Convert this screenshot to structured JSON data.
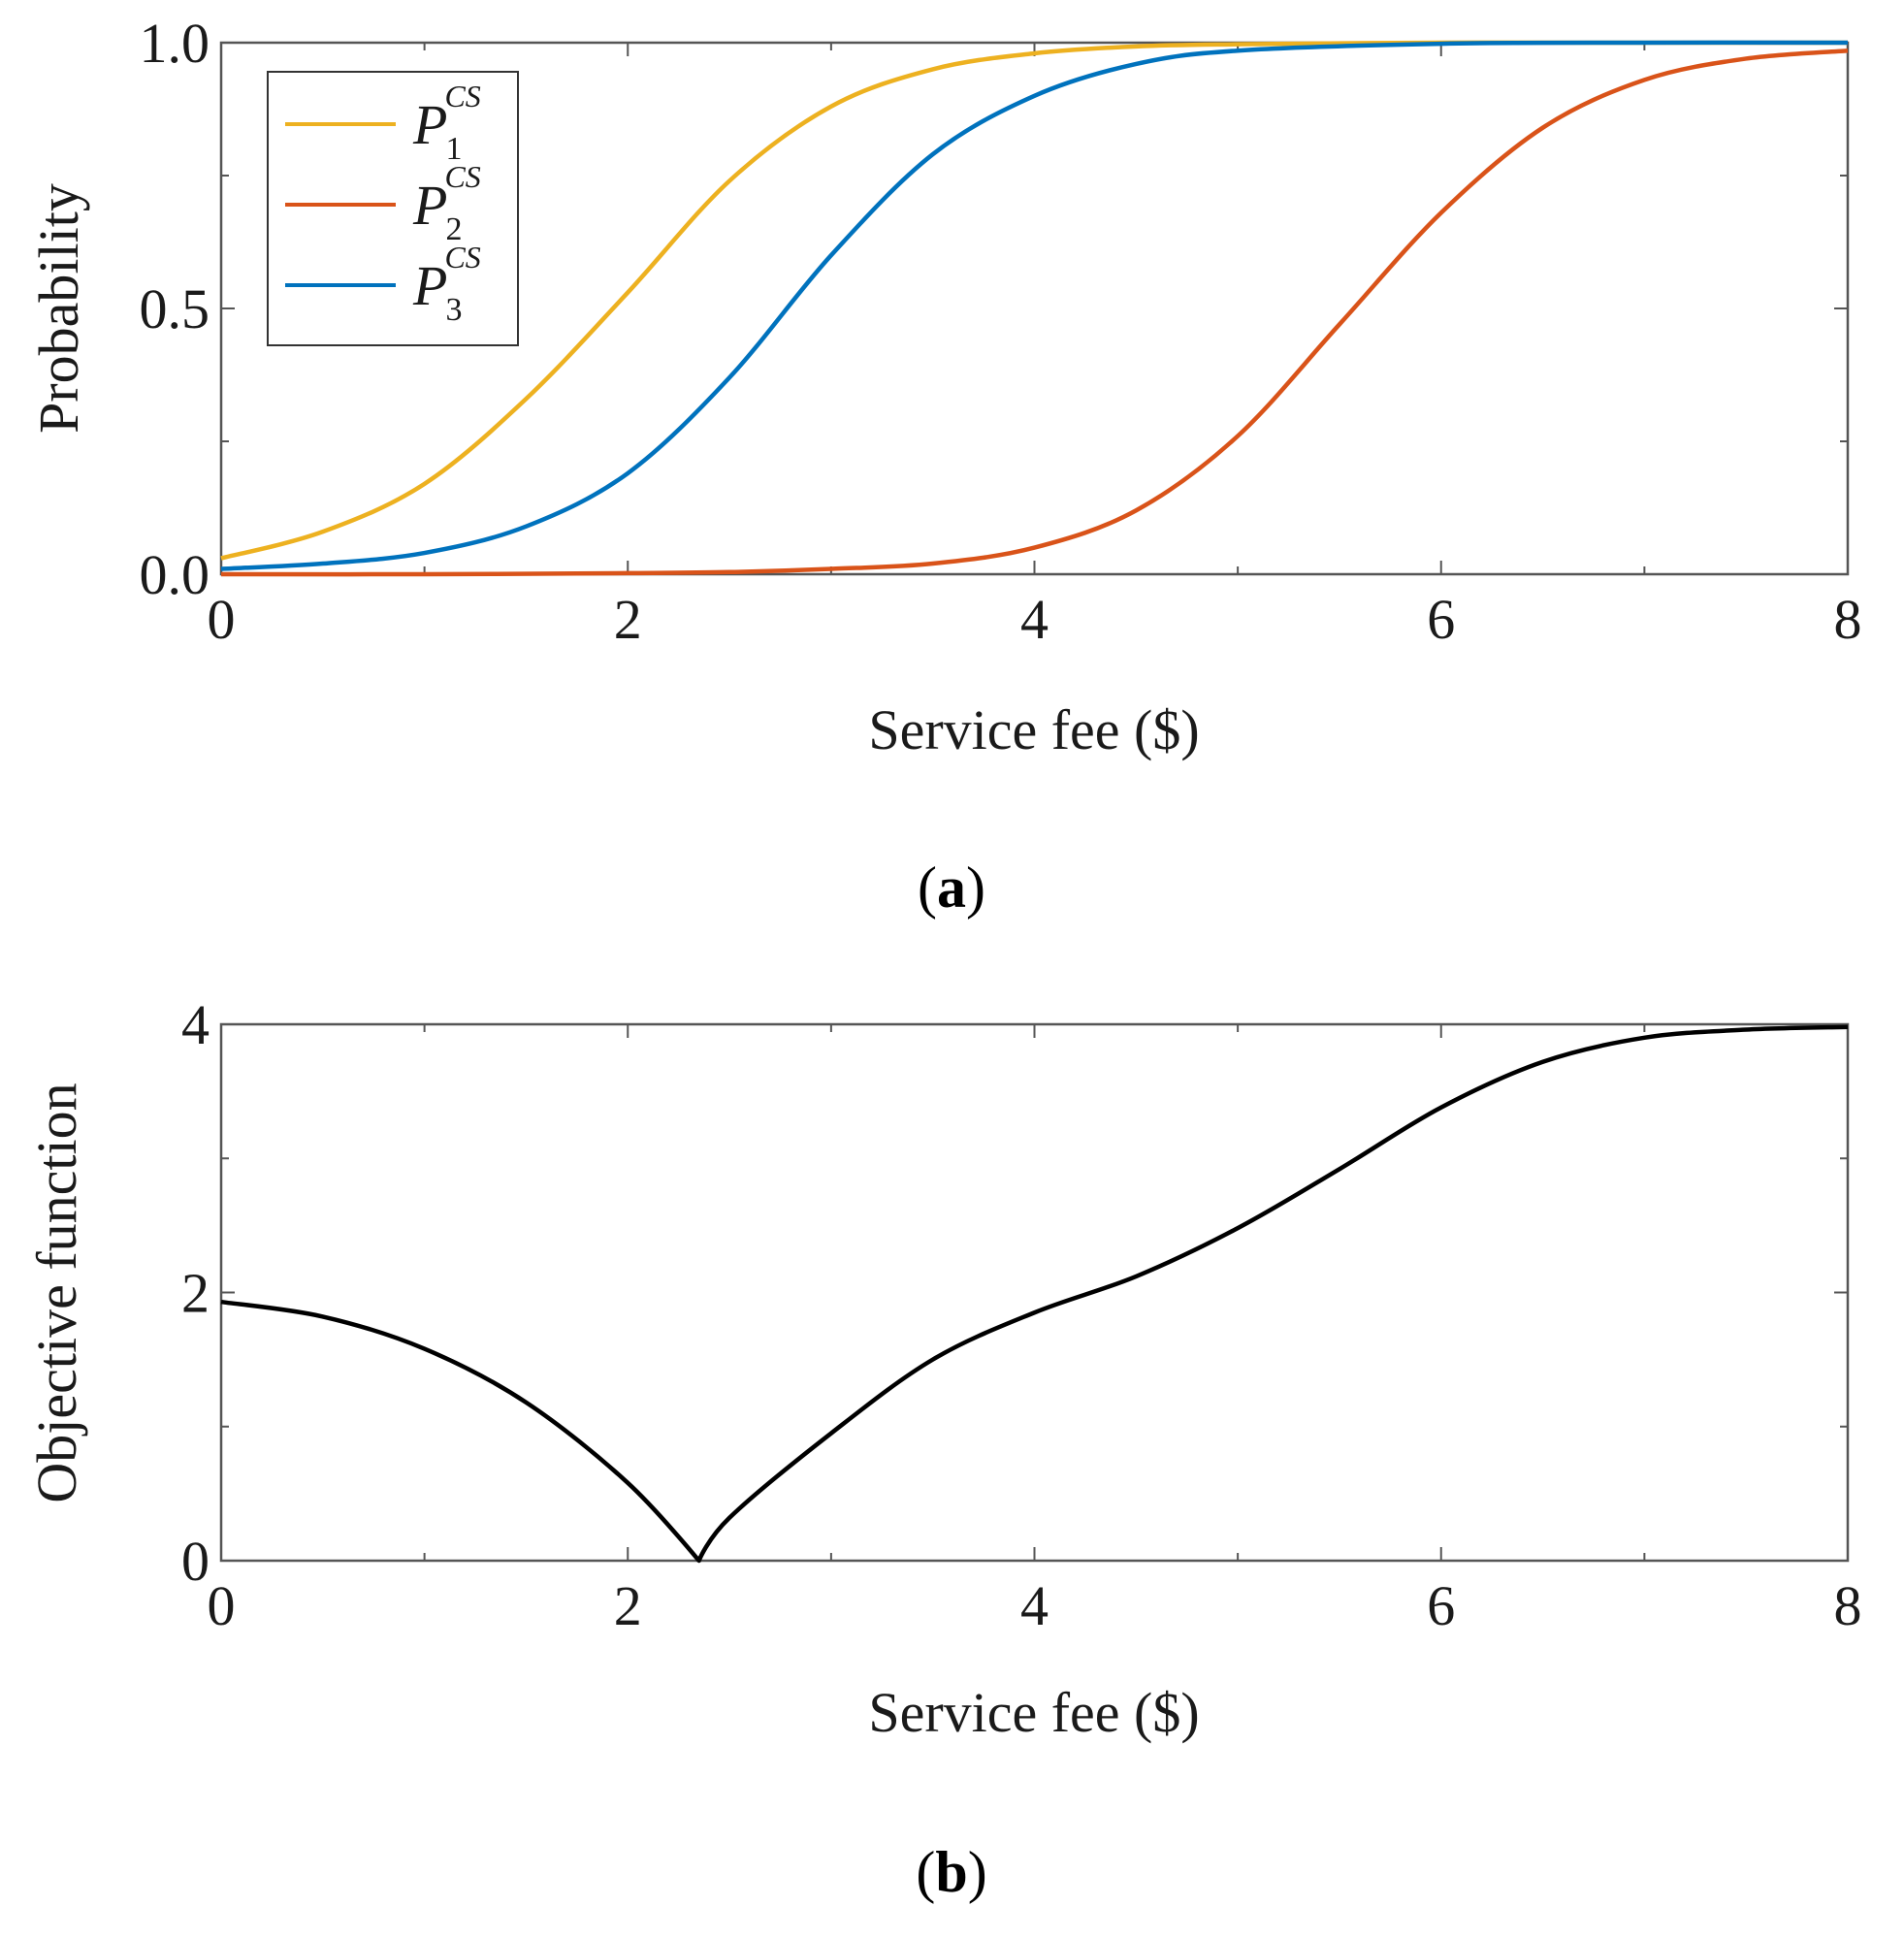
{
  "chart_data": [
    {
      "type": "line",
      "panel": "(a)",
      "panel_letter": "a",
      "xlabel": "Service fee ($)",
      "ylabel": "Probability",
      "xlim": [
        0,
        8
      ],
      "ylim": [
        0,
        1
      ],
      "xticks": [
        0,
        2,
        4,
        6,
        8
      ],
      "yticks": [
        0.0,
        0.5,
        1.0
      ],
      "ytick_labels": [
        "0.0",
        "0.5",
        "1.0"
      ],
      "legend": {
        "placement": "top-left"
      },
      "series": [
        {
          "name": "P1^CS",
          "base": "P",
          "sub": "1",
          "sup": "CS",
          "color": "#EDB120",
          "x": [
            0,
            0.5,
            1,
            1.5,
            2,
            2.5,
            3,
            3.5,
            4,
            4.5,
            5,
            6,
            7,
            8
          ],
          "y": [
            0.03,
            0.08,
            0.17,
            0.33,
            0.53,
            0.74,
            0.88,
            0.95,
            0.98,
            0.993,
            0.997,
            1.0,
            1.0,
            1.0
          ]
        },
        {
          "name": "P2^CS",
          "base": "P",
          "sub": "2",
          "sup": "CS",
          "color": "#D95319",
          "x": [
            0,
            1,
            2,
            2.5,
            3,
            3.5,
            4,
            4.5,
            5,
            5.5,
            6,
            6.5,
            7,
            7.5,
            8
          ],
          "y": [
            0.0,
            0.0,
            0.002,
            0.004,
            0.01,
            0.02,
            0.05,
            0.12,
            0.26,
            0.47,
            0.68,
            0.84,
            0.93,
            0.97,
            0.985
          ]
        },
        {
          "name": "P3^CS",
          "base": "P",
          "sub": "3",
          "sup": "CS",
          "color": "#0072BD",
          "x": [
            0,
            0.5,
            1,
            1.5,
            2,
            2.5,
            3,
            3.5,
            4,
            4.5,
            5,
            6,
            7,
            8
          ],
          "y": [
            0.01,
            0.02,
            0.04,
            0.09,
            0.19,
            0.37,
            0.6,
            0.79,
            0.9,
            0.96,
            0.985,
            0.998,
            1.0,
            1.0
          ]
        }
      ]
    },
    {
      "type": "line",
      "panel": "(b)",
      "panel_letter": "b",
      "xlabel": "Service fee ($)",
      "ylabel": "Objective function",
      "xlim": [
        0,
        8
      ],
      "ylim": [
        0,
        4
      ],
      "xticks": [
        0,
        2,
        4,
        6,
        8
      ],
      "yticks": [
        0,
        2,
        4
      ],
      "ytick_labels": [
        "0",
        "2",
        "4"
      ],
      "series": [
        {
          "name": "Objective function",
          "color": "#000000",
          "x": [
            0,
            0.5,
            1,
            1.5,
            2,
            2.35,
            2.5,
            3,
            3.5,
            4,
            4.5,
            5,
            5.5,
            6,
            6.5,
            7,
            7.5,
            8
          ],
          "y": [
            1.93,
            1.82,
            1.58,
            1.18,
            0.58,
            0.0,
            0.32,
            0.95,
            1.5,
            1.85,
            2.12,
            2.48,
            2.92,
            3.38,
            3.72,
            3.9,
            3.96,
            3.98
          ]
        }
      ]
    }
  ]
}
